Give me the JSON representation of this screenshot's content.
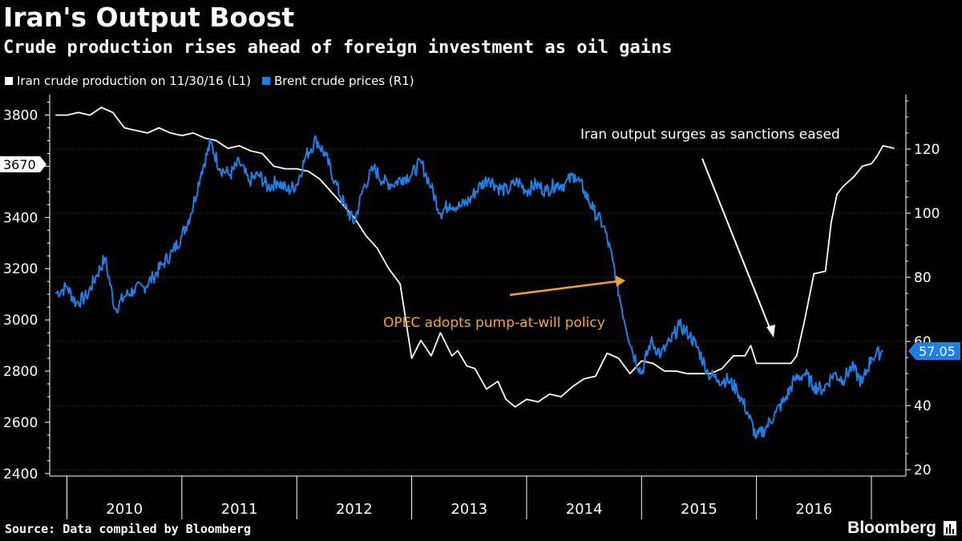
{
  "title": "Iran's Output Boost",
  "subtitle": "Crude production rises ahead of foreign investment as oil gains",
  "legend": [
    {
      "label": "Iran crude production on 11/30/16 (L1)",
      "color": "#ffffff"
    },
    {
      "label": "Brent crude prices (R1)",
      "color": "#1f7fe5"
    }
  ],
  "source": "Source: Data compiled by Bloomberg",
  "brand": "Bloomberg",
  "brand_icon": "bloomberg-terminal-icon",
  "chart_data": {
    "type": "line",
    "x_categories": [
      "2010",
      "2011",
      "2012",
      "2013",
      "2014",
      "2015",
      "2016"
    ],
    "y_left": {
      "ticks": [
        2400,
        2600,
        2800,
        3000,
        3200,
        3400,
        3600,
        3800
      ],
      "range": [
        2390,
        3880
      ]
    },
    "y_right": {
      "ticks": [
        20,
        40,
        60,
        80,
        100,
        120
      ],
      "range": [
        18,
        137
      ]
    },
    "grid": true,
    "legend_position": "top-left",
    "last_value_labels": {
      "left": "3670",
      "right": "57.05"
    },
    "annotations": [
      {
        "text": "Iran output surges as sanctions eased",
        "color": "#ffffff"
      },
      {
        "text": "OPEC adopts pump-at-will policy",
        "color": "#f5a623"
      }
    ],
    "series": [
      {
        "name": "Iran crude production on 11/30/16 (L1)",
        "axis": "left",
        "color": "#ffffff",
        "points": [
          [
            2009.9,
            3800
          ],
          [
            2010.0,
            3800
          ],
          [
            2010.1,
            3810
          ],
          [
            2010.2,
            3800
          ],
          [
            2010.3,
            3830
          ],
          [
            2010.4,
            3810
          ],
          [
            2010.5,
            3750
          ],
          [
            2010.6,
            3740
          ],
          [
            2010.7,
            3730
          ],
          [
            2010.8,
            3750
          ],
          [
            2010.9,
            3730
          ],
          [
            2011.0,
            3720
          ],
          [
            2011.1,
            3730
          ],
          [
            2011.2,
            3710
          ],
          [
            2011.3,
            3700
          ],
          [
            2011.4,
            3670
          ],
          [
            2011.5,
            3680
          ],
          [
            2011.6,
            3660
          ],
          [
            2011.7,
            3650
          ],
          [
            2011.8,
            3600
          ],
          [
            2011.9,
            3590
          ],
          [
            2012.0,
            3590
          ],
          [
            2012.1,
            3580
          ],
          [
            2012.2,
            3550
          ],
          [
            2012.3,
            3500
          ],
          [
            2012.4,
            3450
          ],
          [
            2012.5,
            3400
          ],
          [
            2012.6,
            3330
          ],
          [
            2012.7,
            3280
          ],
          [
            2012.8,
            3200
          ],
          [
            2012.9,
            3140
          ],
          [
            2013.0,
            2850
          ],
          [
            2013.08,
            2920
          ],
          [
            2013.17,
            2860
          ],
          [
            2013.25,
            2950
          ],
          [
            2013.35,
            2860
          ],
          [
            2013.4,
            2880
          ],
          [
            2013.48,
            2820
          ],
          [
            2013.55,
            2810
          ],
          [
            2013.65,
            2730
          ],
          [
            2013.75,
            2760
          ],
          [
            2013.82,
            2690
          ],
          [
            2013.9,
            2660
          ],
          [
            2014.0,
            2690
          ],
          [
            2014.1,
            2680
          ],
          [
            2014.2,
            2710
          ],
          [
            2014.3,
            2700
          ],
          [
            2014.4,
            2740
          ],
          [
            2014.5,
            2770
          ],
          [
            2014.6,
            2780
          ],
          [
            2014.7,
            2870
          ],
          [
            2014.8,
            2850
          ],
          [
            2014.9,
            2790
          ],
          [
            2015.0,
            2840
          ],
          [
            2015.1,
            2830
          ],
          [
            2015.2,
            2800
          ],
          [
            2015.3,
            2800
          ],
          [
            2015.4,
            2790
          ],
          [
            2015.5,
            2790
          ],
          [
            2015.6,
            2790
          ],
          [
            2015.7,
            2810
          ],
          [
            2015.8,
            2860
          ],
          [
            2015.9,
            2860
          ],
          [
            2015.95,
            2900
          ],
          [
            2016.0,
            2830
          ],
          [
            2016.1,
            2830
          ],
          [
            2016.2,
            2830
          ],
          [
            2016.3,
            2830
          ],
          [
            2016.35,
            2860
          ],
          [
            2016.42,
            3000
          ],
          [
            2016.5,
            3180
          ],
          [
            2016.6,
            3190
          ],
          [
            2016.65,
            3380
          ],
          [
            2016.7,
            3490
          ],
          [
            2016.75,
            3520
          ],
          [
            2016.85,
            3560
          ],
          [
            2016.92,
            3600
          ],
          [
            2017.0,
            3610
          ],
          [
            2017.05,
            3640
          ],
          [
            2017.1,
            3680
          ],
          [
            2017.2,
            3670
          ]
        ]
      },
      {
        "name": "Brent crude prices (R1)",
        "axis": "right",
        "color": "#1f7fe5",
        "points": [
          [
            2009.9,
            75
          ],
          [
            2010.0,
            77
          ],
          [
            2010.08,
            72
          ],
          [
            2010.17,
            74
          ],
          [
            2010.25,
            80
          ],
          [
            2010.33,
            86
          ],
          [
            2010.42,
            70
          ],
          [
            2010.5,
            74
          ],
          [
            2010.58,
            76
          ],
          [
            2010.67,
            77
          ],
          [
            2010.75,
            80
          ],
          [
            2010.83,
            84
          ],
          [
            2010.92,
            88
          ],
          [
            2011.0,
            93
          ],
          [
            2011.08,
            100
          ],
          [
            2011.17,
            113
          ],
          [
            2011.25,
            122
          ],
          [
            2011.33,
            114
          ],
          [
            2011.42,
            112
          ],
          [
            2011.5,
            116
          ],
          [
            2011.58,
            110
          ],
          [
            2011.67,
            112
          ],
          [
            2011.75,
            108
          ],
          [
            2011.83,
            110
          ],
          [
            2011.92,
            107
          ],
          [
            2012.0,
            109
          ],
          [
            2012.08,
            118
          ],
          [
            2012.17,
            123
          ],
          [
            2012.25,
            118
          ],
          [
            2012.33,
            110
          ],
          [
            2012.42,
            102
          ],
          [
            2012.5,
            97
          ],
          [
            2012.58,
            108
          ],
          [
            2012.67,
            114
          ],
          [
            2012.75,
            110
          ],
          [
            2012.83,
            109
          ],
          [
            2012.92,
            111
          ],
          [
            2013.0,
            112
          ],
          [
            2013.08,
            116
          ],
          [
            2013.17,
            108
          ],
          [
            2013.25,
            100
          ],
          [
            2013.33,
            103
          ],
          [
            2013.42,
            102
          ],
          [
            2013.5,
            104
          ],
          [
            2013.58,
            108
          ],
          [
            2013.67,
            111
          ],
          [
            2013.75,
            108
          ],
          [
            2013.83,
            107
          ],
          [
            2013.92,
            110
          ],
          [
            2014.0,
            107
          ],
          [
            2014.08,
            109
          ],
          [
            2014.17,
            107
          ],
          [
            2014.25,
            109
          ],
          [
            2014.33,
            109
          ],
          [
            2014.42,
            112
          ],
          [
            2014.5,
            107
          ],
          [
            2014.58,
            101
          ],
          [
            2014.67,
            96
          ],
          [
            2014.75,
            85
          ],
          [
            2014.83,
            70
          ],
          [
            2014.92,
            57
          ],
          [
            2015.0,
            50
          ],
          [
            2015.08,
            60
          ],
          [
            2015.17,
            56
          ],
          [
            2015.25,
            60
          ],
          [
            2015.33,
            65
          ],
          [
            2015.42,
            62
          ],
          [
            2015.5,
            57
          ],
          [
            2015.58,
            50
          ],
          [
            2015.67,
            48
          ],
          [
            2015.75,
            48
          ],
          [
            2015.83,
            45
          ],
          [
            2015.92,
            38
          ],
          [
            2016.0,
            30
          ],
          [
            2016.08,
            33
          ],
          [
            2016.17,
            38
          ],
          [
            2016.25,
            42
          ],
          [
            2016.33,
            48
          ],
          [
            2016.42,
            50
          ],
          [
            2016.5,
            46
          ],
          [
            2016.58,
            45
          ],
          [
            2016.67,
            50
          ],
          [
            2016.75,
            48
          ],
          [
            2016.83,
            52
          ],
          [
            2016.92,
            47
          ],
          [
            2017.0,
            55
          ],
          [
            2017.1,
            57.05
          ]
        ]
      }
    ]
  }
}
